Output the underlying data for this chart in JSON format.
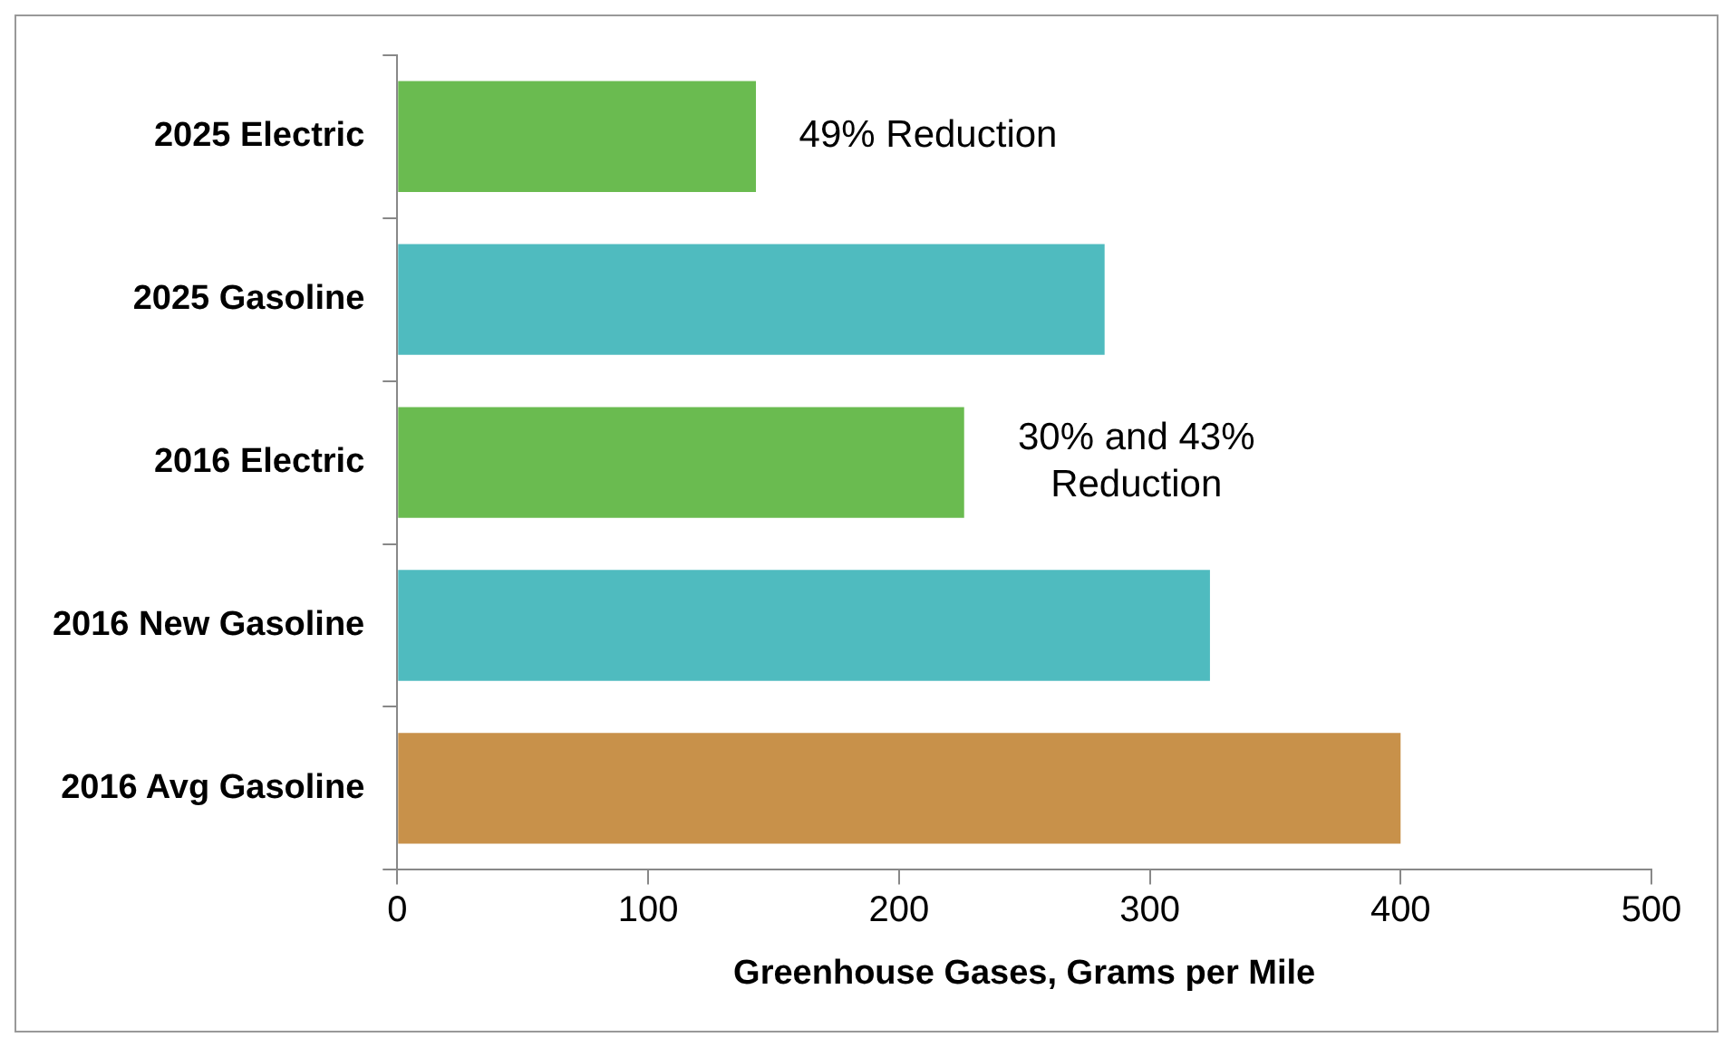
{
  "chart_data": {
    "type": "bar",
    "orientation": "horizontal",
    "xlabel": "Greenhouse Gases, Grams per Mile",
    "categories": [
      "2025 Electric",
      "2025 Gasoline",
      "2016 Electric",
      "2016 New Gasoline",
      "2016 Avg Gasoline"
    ],
    "values": [
      143,
      282,
      226,
      324,
      400
    ],
    "colors": [
      "#6abb50",
      "#4fbbbf",
      "#6abb50",
      "#4fbbbf",
      "#c8914a"
    ],
    "xlim": [
      0,
      500
    ],
    "xticks": [
      0,
      100,
      200,
      300,
      400,
      500
    ],
    "grid": false,
    "legend": false,
    "annotations": [
      "49% Reduction",
      "30% and 43% Reduction"
    ]
  }
}
